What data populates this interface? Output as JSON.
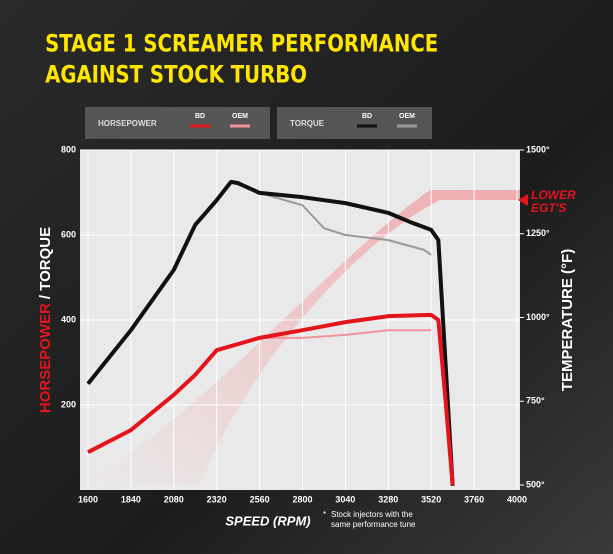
{
  "chart_data": {
    "type": "line",
    "title": [
      "STAGE 1 SCREAMER PERFORMANCE",
      "AGAINST STOCK TURBO"
    ],
    "legend_titles": [
      "HORSEPOWER",
      "TORQUE"
    ],
    "xlabel": "SPEED (RPM)",
    "ylabel_parts": [
      "HORSEPOWER",
      "/ TORQUE"
    ],
    "y2label": "TEMPERATURE (°F)",
    "annotation": [
      "LOWER",
      "EGT'S"
    ],
    "footnote": [
      "*",
      "Stock injectors with the",
      "same performance tune"
    ],
    "xlim": [
      1600,
      4000
    ],
    "xticks": [
      1600,
      1840,
      2080,
      2320,
      2560,
      2800,
      3040,
      3280,
      3520,
      3760,
      4000
    ],
    "ylim": [
      0,
      800
    ],
    "yticks": [
      200,
      400,
      600,
      800
    ],
    "y2lim": [
      500,
      1500
    ],
    "y2ticks": [
      {
        "value": 500,
        "label": "500°"
      },
      {
        "value": 750,
        "label": "750°"
      },
      {
        "value": 1000,
        "label": "1000°"
      },
      {
        "value": 1250,
        "label": "1250°"
      },
      {
        "value": 1500,
        "label": "1500°"
      }
    ],
    "grid": true,
    "series": [
      {
        "name": "BD",
        "color": "#e3141b",
        "x": [
          1600,
          1840,
          2080,
          2200,
          2320,
          2560,
          2800,
          3040,
          3280,
          3520,
          3560,
          3600,
          3640
        ],
        "values": [
          89,
          141,
          224,
          271,
          329,
          358,
          376,
          395,
          409,
          412,
          400,
          212,
          12
        ]
      },
      {
        "name": "OEM",
        "color": "#f2959a",
        "x": [
          1600,
          1840,
          2080,
          2200,
          2320,
          2560,
          2800,
          3040,
          3280,
          3520
        ],
        "values": [
          89,
          141,
          224,
          271,
          329,
          358,
          358,
          365,
          376,
          376
        ]
      },
      {
        "name": "BD",
        "color": "#111111",
        "x": [
          1600,
          1840,
          2080,
          2200,
          2320,
          2400,
          2440,
          2560,
          2800,
          3040,
          3280,
          3400,
          3520,
          3560,
          3600,
          3640
        ],
        "values": [
          250,
          376,
          518,
          624,
          682,
          725,
          722,
          699,
          689,
          675,
          652,
          631,
          612,
          588,
          300,
          10
        ]
      },
      {
        "name": "OEM",
        "color": "#9a9a9a",
        "x": [
          1600,
          1840,
          2080,
          2200,
          2320,
          2400,
          2560,
          2800,
          2920,
          3040,
          3280,
          3480,
          3520
        ],
        "values": [
          250,
          376,
          518,
          624,
          682,
          725,
          699,
          670,
          616,
          600,
          588,
          565,
          553
        ]
      }
    ]
  }
}
